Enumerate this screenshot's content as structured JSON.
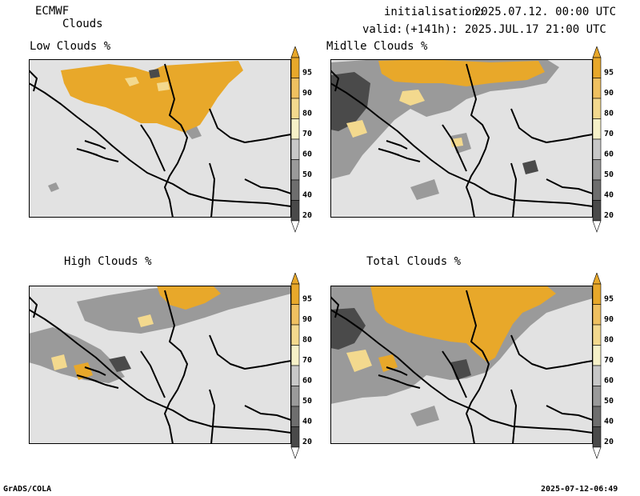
{
  "header": {
    "model": "ECMWF",
    "product": "Clouds",
    "init_label": "initialisation:",
    "init_value": "2025.07.12. 00:00 UTC",
    "valid_label": "valid:",
    "valid_value": "(+141h): 2025.JUL.17 21:00 UTC"
  },
  "panels": [
    {
      "title": "Low Clouds %"
    },
    {
      "title": "Midlle Clouds %"
    },
    {
      "title": "High Clouds %"
    },
    {
      "title": "Total Clouds %"
    }
  ],
  "colorbar": {
    "levels": [
      "95",
      "90",
      "80",
      "70",
      "60",
      "50",
      "40",
      "20"
    ],
    "colors": [
      "#e8a82a",
      "#efc060",
      "#f3d98e",
      "#f6f1c8",
      "#c8c8c8",
      "#9a9a9a",
      "#6e6e6e",
      "#4a4a4a"
    ]
  },
  "map": {
    "land_color": "#e2e2e2",
    "border_color": "#000000"
  },
  "footer": {
    "left": "GrADS/COLA",
    "right": "2025-07-12-06:49"
  }
}
